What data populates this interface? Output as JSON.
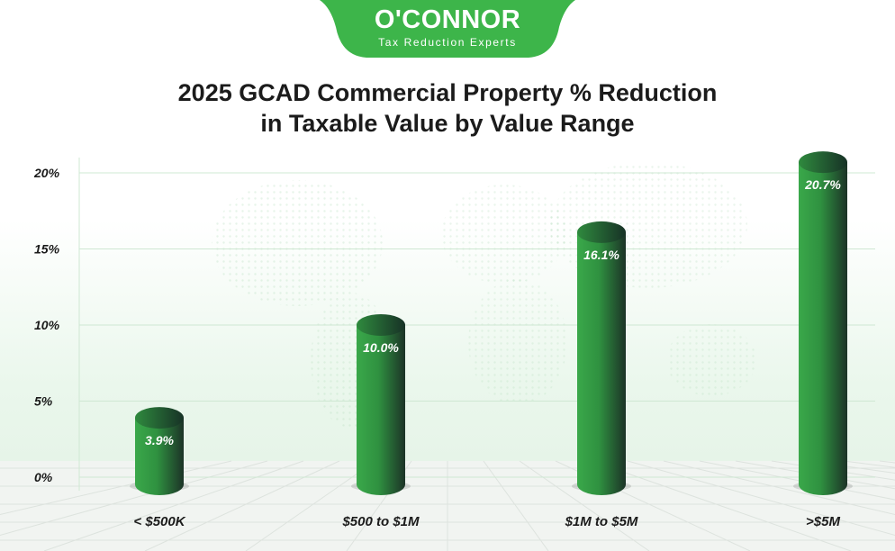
{
  "brand": {
    "name": "O'CONNOR",
    "tagline": "Tax Reduction Experts",
    "color": "#3db54a"
  },
  "title_line1": "2025 GCAD Commercial Property % Reduction",
  "title_line2": "in Taxable Value by Value Range",
  "chart_data": {
    "type": "bar",
    "title": "2025 GCAD Commercial Property % Reduction in Taxable Value by Value Range",
    "categories": [
      "< $500K",
      "$500 to $1M",
      "$1M to $5M",
      ">$5M"
    ],
    "values": [
      3.9,
      10.0,
      16.1,
      20.7
    ],
    "data_labels": [
      "3.9%",
      "10.0%",
      "16.1%",
      "20.7%"
    ],
    "yticks": [
      "0%",
      "5%",
      "10%",
      "15%",
      "20%"
    ],
    "ytick_values": [
      0,
      5,
      10,
      15,
      20
    ],
    "ylim": [
      0,
      20.7
    ],
    "grid": true,
    "bar_color_light": "#3db54a",
    "bar_color_dark": "#1e3a2a"
  }
}
